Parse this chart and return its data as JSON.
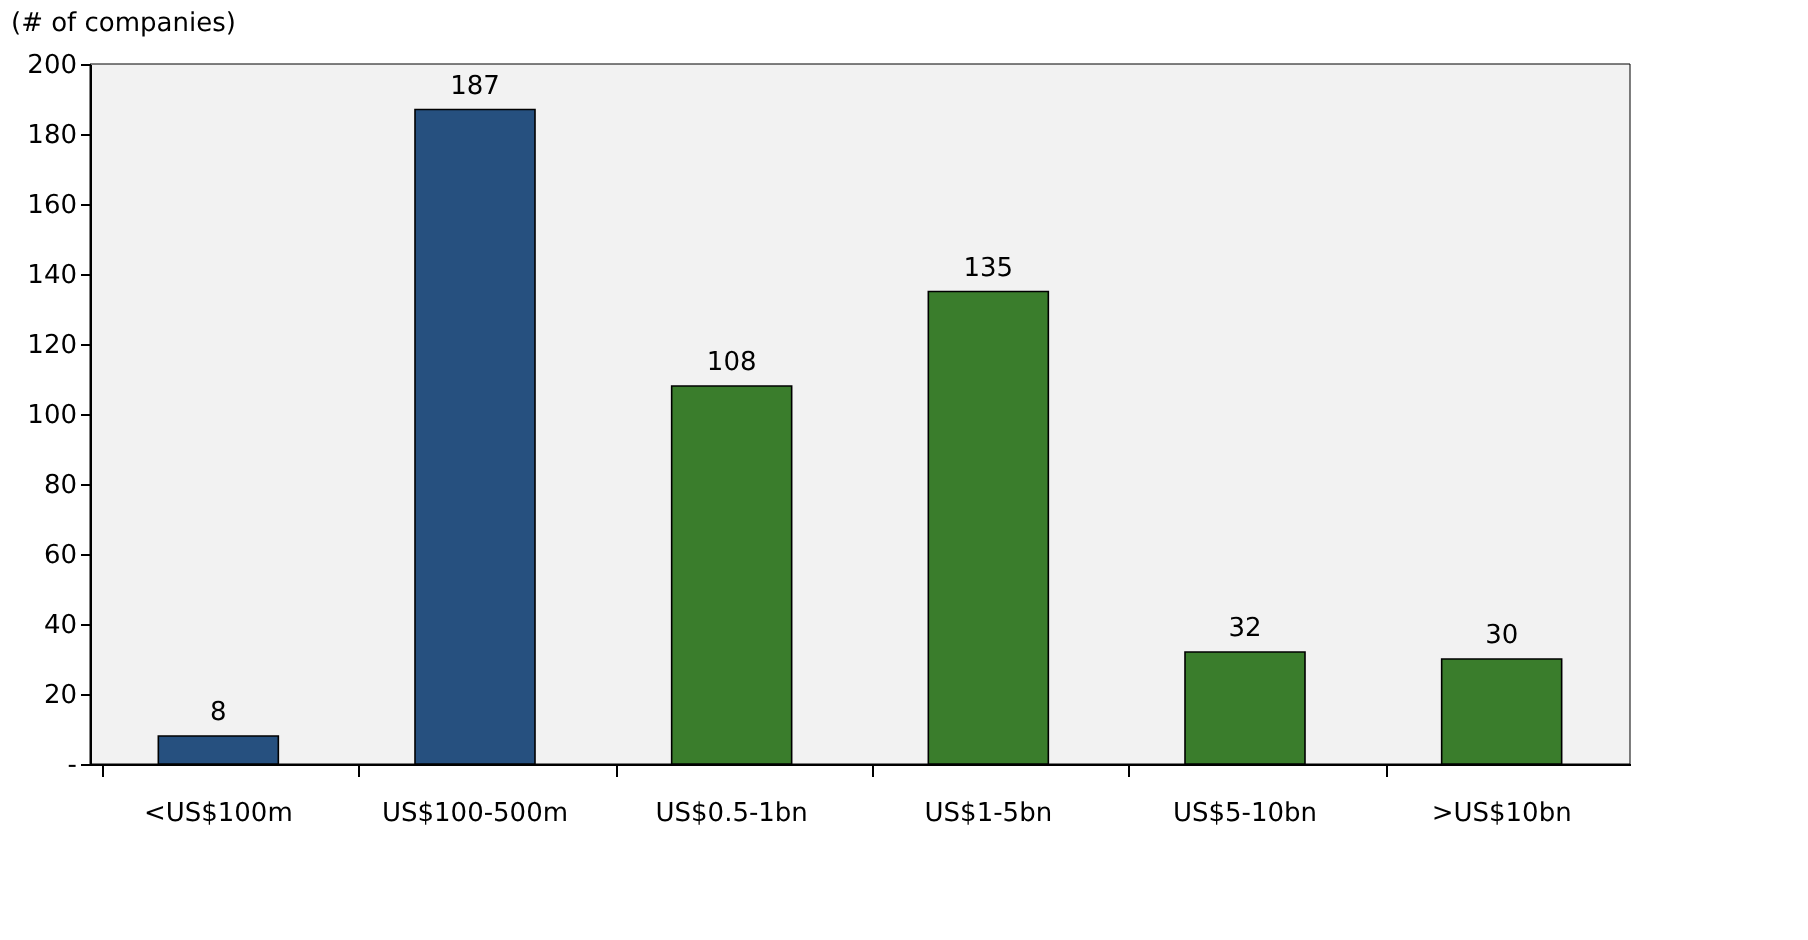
{
  "chart_data": {
    "type": "bar",
    "ylabel": "(# of companies)",
    "categories": [
      "<US$100m",
      "US$100-500m",
      "US$0.5-1bn",
      "US$1-5bn",
      "US$5-10bn",
      ">US$10bn"
    ],
    "values": [
      8,
      187,
      108,
      135,
      32,
      30
    ],
    "colors": [
      "#26507f",
      "#26507f",
      "#3a7d2c",
      "#3a7d2c",
      "#3a7d2c",
      "#3a7d2c"
    ],
    "ylim": [
      0,
      200
    ],
    "yticks": [
      {
        "value": 0,
        "label": "-"
      },
      20,
      40,
      60,
      80,
      100,
      120,
      140,
      160,
      180,
      200
    ],
    "data_labels": true,
    "grid": false
  }
}
